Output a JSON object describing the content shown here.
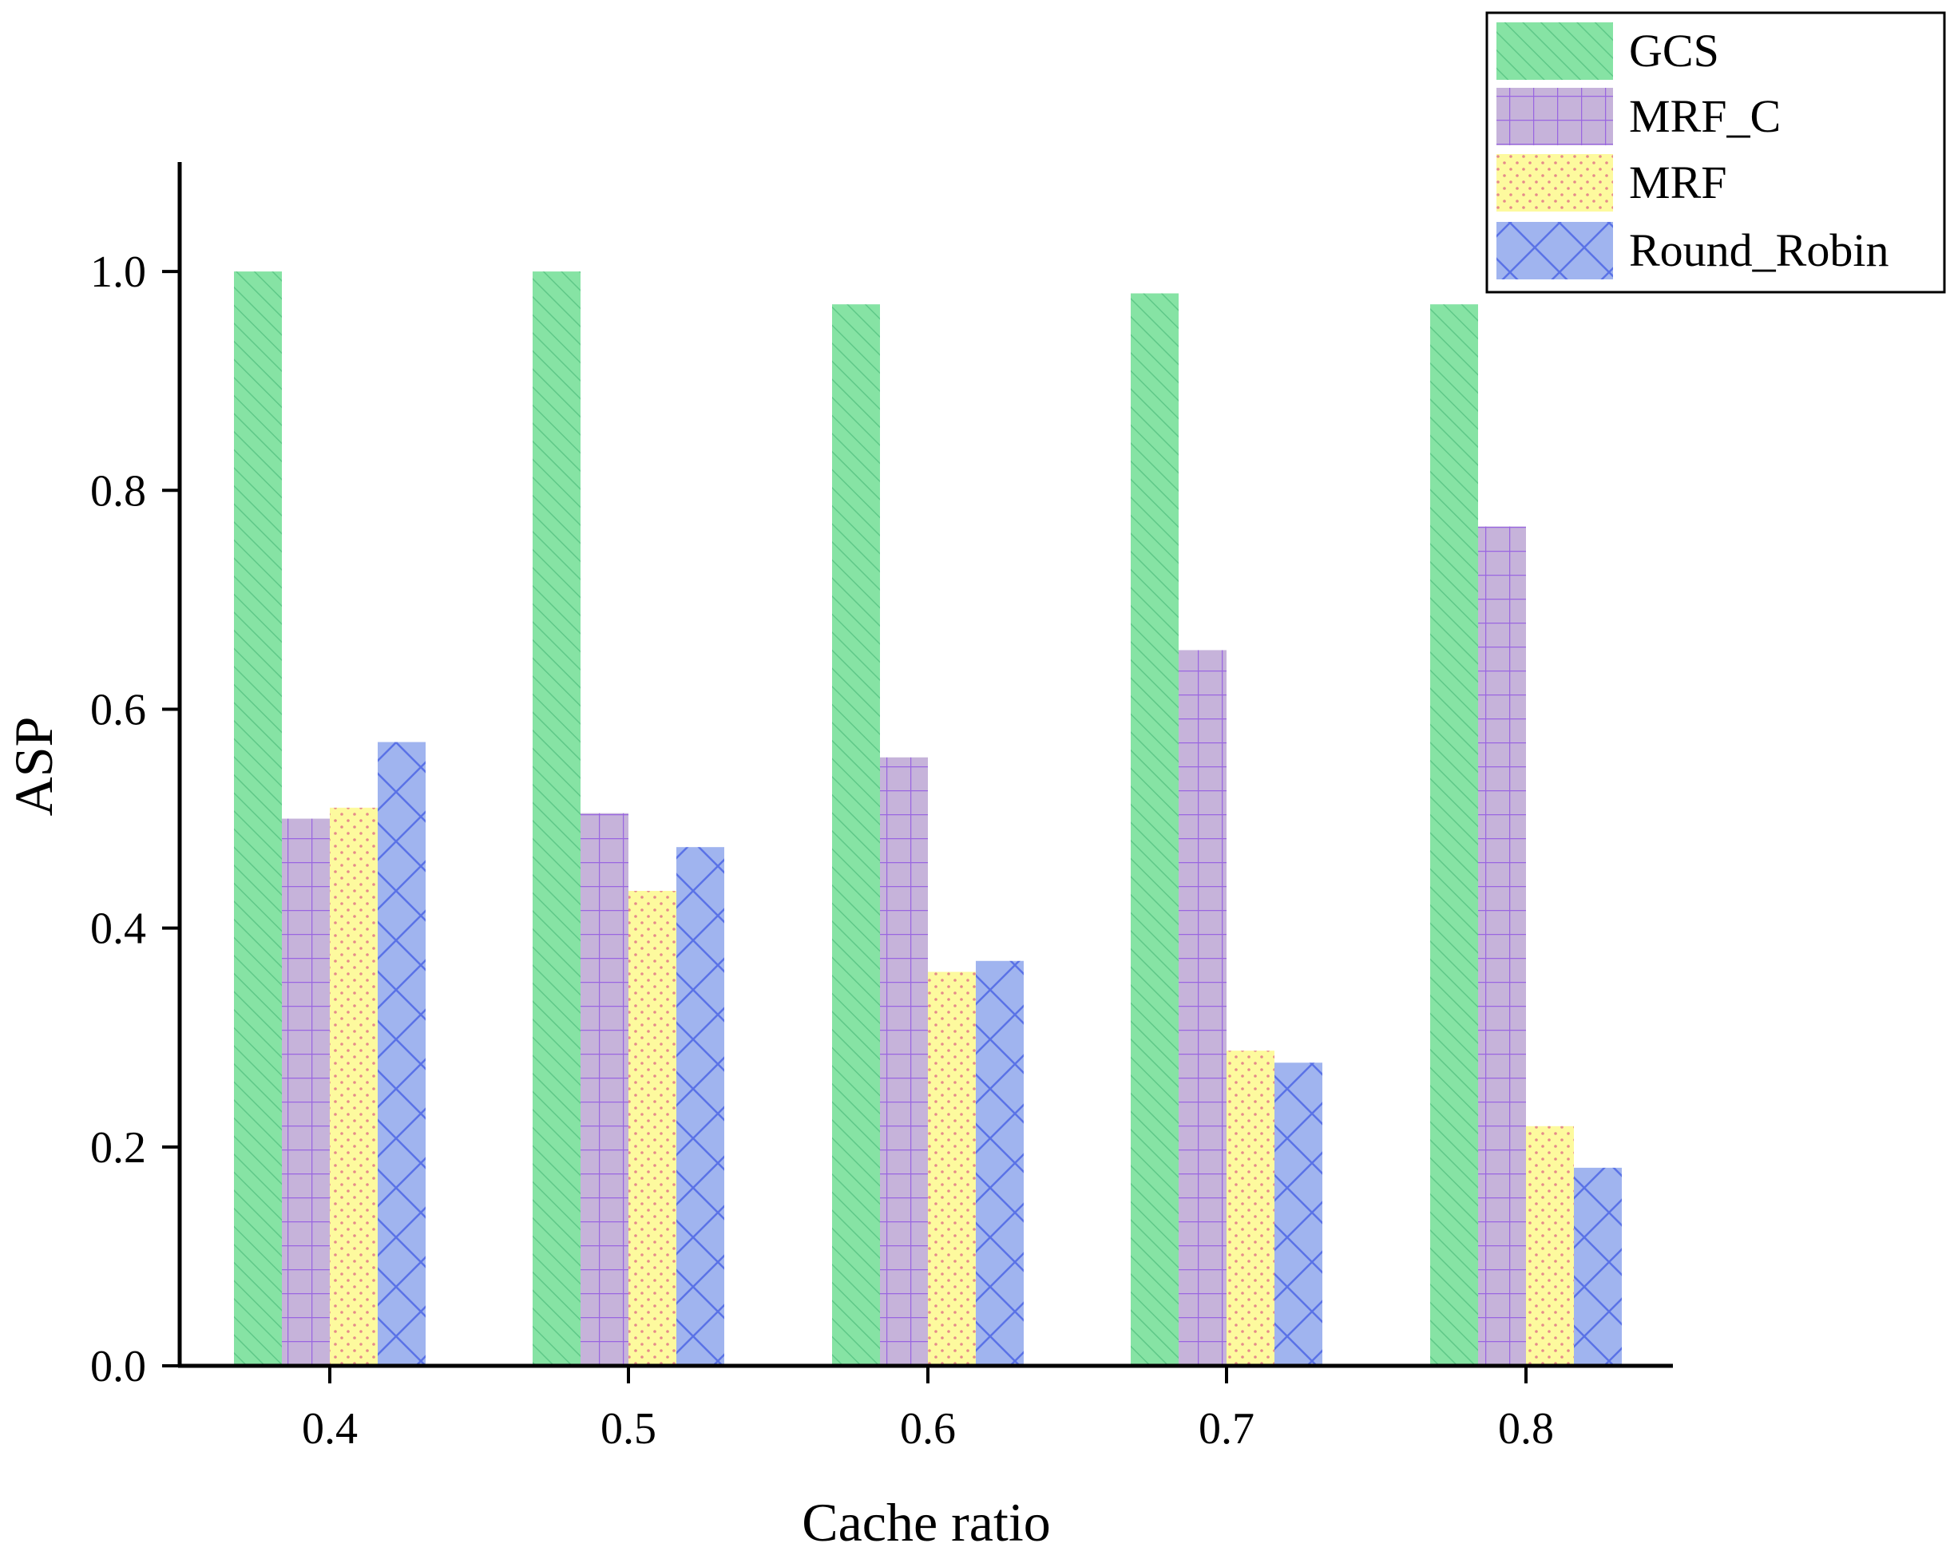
{
  "chart_data": {
    "type": "bar",
    "title": "",
    "xlabel": "Cache ratio",
    "ylabel": "ASP",
    "categories": [
      "0.4",
      "0.5",
      "0.6",
      "0.7",
      "0.8"
    ],
    "ylim": [
      0,
      1.1
    ],
    "yticks": [
      0.0,
      0.2,
      0.4,
      0.6,
      0.8,
      1.0
    ],
    "ytick_labels": [
      "0.0",
      "0.2",
      "0.4",
      "0.6",
      "0.8",
      "1.0"
    ],
    "grid": false,
    "legend_position": "top-right",
    "series": [
      {
        "name": "GCS",
        "values": [
          1.0,
          1.0,
          0.97,
          0.98,
          0.97
        ],
        "color": "#86e3a4",
        "pattern": "diagonal-hatch"
      },
      {
        "name": "MRF_C",
        "values": [
          0.5,
          0.505,
          0.556,
          0.654,
          0.767
        ],
        "color": "#c6b3da",
        "pattern": "grid"
      },
      {
        "name": "MRF",
        "values": [
          0.51,
          0.434,
          0.36,
          0.288,
          0.219
        ],
        "color": "#fdfa9e",
        "pattern": "dots"
      },
      {
        "name": "Round_Robin",
        "values": [
          0.57,
          0.474,
          0.37,
          0.277,
          0.181
        ],
        "color": "#a0b4ef",
        "pattern": "crosshatch"
      }
    ]
  }
}
